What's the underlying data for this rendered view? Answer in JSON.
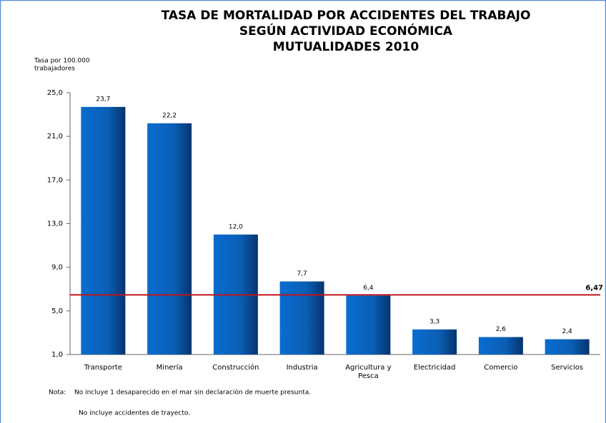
{
  "chart_data": {
    "type": "bar",
    "title": [
      "TASA DE MORTALIDAD POR ACCIDENTES DEL TRABAJO",
      "SEGÚN ACTIVIDAD ECONÓMICA",
      "MUTUALIDADES 2010"
    ],
    "y_label": [
      "Tasa por 100.000",
      "trabajadores"
    ],
    "categories": [
      "Transporte",
      "Minería",
      "Construcción",
      "Industria",
      "Agricultura y Pesca",
      "Electricidad",
      "Comercio",
      "Servicios"
    ],
    "values": [
      23.7,
      22.2,
      12.0,
      7.7,
      6.4,
      3.3,
      2.6,
      2.4
    ],
    "value_labels": [
      "23,7",
      "22,2",
      "12,0",
      "7,7",
      "6,4",
      "3,3",
      "2,6",
      "2,4"
    ],
    "color": "#0a5fb4",
    "ylim": [
      1,
      25
    ],
    "yticks": [
      {
        "value": 1,
        "label": "1,0"
      },
      {
        "value": 5,
        "label": "5,0"
      },
      {
        "value": 9,
        "label": "9,0"
      },
      {
        "value": 13,
        "label": "13,0"
      },
      {
        "value": 17,
        "label": "17,0"
      },
      {
        "value": 21,
        "label": "21,0"
      },
      {
        "value": 25,
        "label": "25,0"
      }
    ],
    "grid": false,
    "reference_line": {
      "value": 6.47,
      "label": "6,47",
      "color": "#c0141b"
    },
    "notes": {
      "label": "Nota:",
      "lines": [
        "No incluye 1 desaparecido en el mar sin declaración de muerte presunta.",
        "No incluye accidentes de trayecto."
      ]
    }
  }
}
